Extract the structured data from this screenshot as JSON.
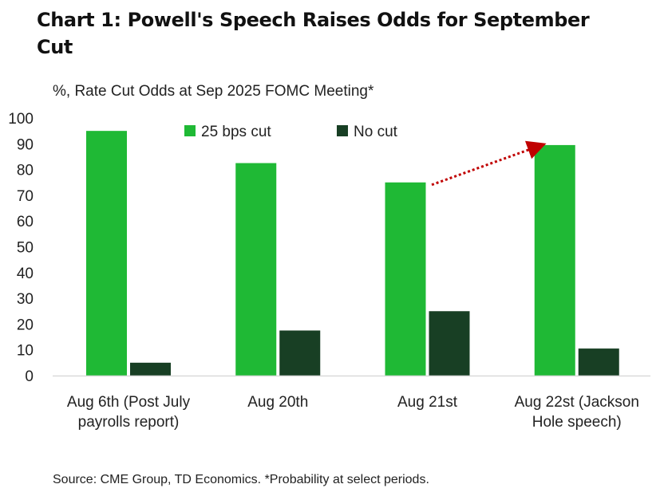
{
  "title": "Chart 1: Powell's Speech Raises Odds for September Cut",
  "source": "Source: CME Group, TD Economics. *Probability at select periods.",
  "chart_data": {
    "type": "bar",
    "title": "Chart 1: Powell's Speech Raises Odds for September Cut",
    "ylabel": "%, Rate Cut Odds at Sep 2025 FOMC Meeting*",
    "xlabel": "",
    "ylim": [
      0,
      100
    ],
    "yticks": [
      0,
      10,
      20,
      30,
      40,
      50,
      60,
      70,
      80,
      90,
      100
    ],
    "grid": false,
    "legend_position": "top",
    "categories": [
      [
        "Aug 6th (Post July",
        "payrolls report)"
      ],
      [
        "Aug 20th"
      ],
      [
        "Aug 21st"
      ],
      [
        "Aug 22st (Jackson",
        "Hole speech)"
      ]
    ],
    "series": [
      {
        "name": "25 bps cut",
        "color": "#1fb935",
        "values": [
          95,
          82.5,
          75,
          89.5
        ]
      },
      {
        "name": "No cut",
        "color": "#183f24",
        "values": [
          5,
          17.5,
          25,
          10.5
        ]
      }
    ],
    "annotations": [
      {
        "type": "arrow",
        "style": "dotted",
        "color": "#c00000",
        "from_category": 2,
        "to_category": 3,
        "from_value": 75,
        "to_value": 89.5
      }
    ]
  }
}
